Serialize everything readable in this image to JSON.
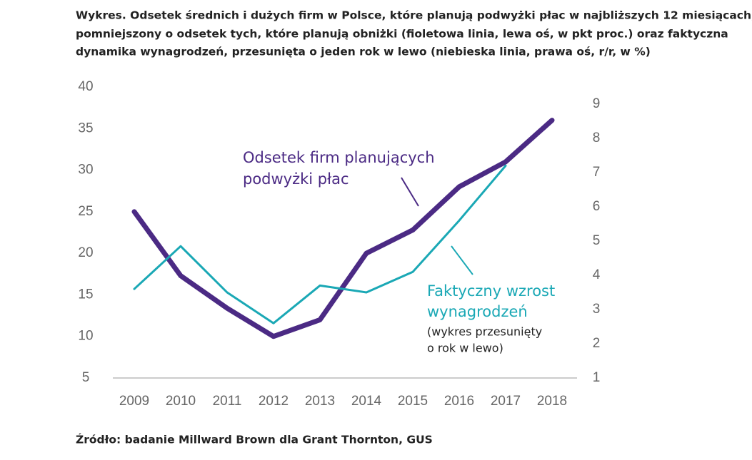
{
  "chart_data": {
    "type": "line",
    "title": [
      "Wykres. Odsetek średnich i dużych firm w Polsce, które planują podwyżki płac w najbliższych 12 miesiącach,",
      "pomniejszony o odsetek tych, które planują obniżki (fioletowa linia, lewa oś, w pkt proc.) oraz faktyczna",
      "dynamika wynagrodzeń, przesunięta o jeden rok w lewo (niebieska linia, prawa oś, r/r, w %)"
    ],
    "categories": [
      "2009",
      "2010",
      "2011",
      "2012",
      "2013",
      "2014",
      "2015",
      "2016",
      "2017",
      "2018"
    ],
    "series": [
      {
        "label_lines": [
          "Odsetek firm planujących",
          "podwyżki płac"
        ],
        "color": "#4b2a84",
        "axis": "y",
        "values": [
          25,
          17.3,
          13.4,
          10,
          12,
          20,
          22.8,
          28,
          31,
          36
        ]
      },
      {
        "label_lines": [
          "Faktyczny wzrost",
          "wynagrodzeń"
        ],
        "note_lines": [
          "(wykres przesunięty",
          "o rok w lewo)"
        ],
        "color": "#1aa8b5",
        "axis": "y2",
        "values": [
          3.6,
          4.85,
          3.5,
          2.6,
          3.7,
          3.5,
          4.1,
          5.6,
          7.2,
          null
        ]
      }
    ],
    "ylim": [
      5,
      40
    ],
    "yticks": [
      5,
      10,
      15,
      20,
      25,
      30,
      35,
      40
    ],
    "y2lim": [
      1,
      9.5
    ],
    "y2ticks": [
      1,
      2,
      3,
      4,
      5,
      6,
      7,
      8,
      9
    ],
    "source": "Źródło: badanie Millward Brown dla Grant Thornton, GUS"
  }
}
